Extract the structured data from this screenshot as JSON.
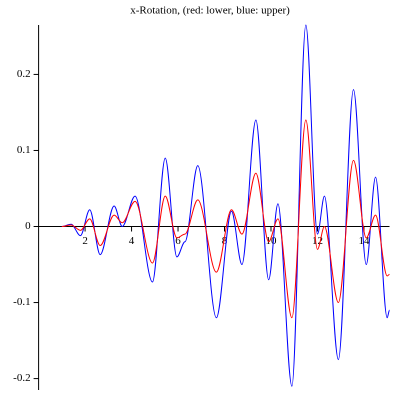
{
  "chart_data": {
    "type": "line",
    "title": "x-Rotation, (red: lower, blue: upper)",
    "x": [
      1,
      1.4,
      1.8,
      2.2,
      2.65,
      3.25,
      3.6,
      4.15,
      4.9,
      5.45,
      5.95,
      6.3,
      6.85,
      7.65,
      8.3,
      8.75,
      9.35,
      9.9,
      10.3,
      10.9,
      11.5,
      12.0,
      12.3,
      12.9,
      13.55,
      14.1,
      14.5,
      15.0,
      15.1
    ],
    "series": [
      {
        "color": "#0000ff",
        "values": [
          0,
          0.003,
          -0.012,
          0.022,
          -0.037,
          0.027,
          0.0,
          0.04,
          -0.073,
          0.09,
          -0.04,
          -0.02,
          0.08,
          -0.12,
          0.02,
          -0.05,
          0.14,
          -0.07,
          0.03,
          -0.21,
          0.265,
          -0.01,
          0.04,
          -0.175,
          0.18,
          -0.05,
          0.065,
          -0.12,
          -0.11
        ]
      },
      {
        "color": "#ff0000",
        "values": [
          0,
          0.002,
          -0.005,
          0.01,
          -0.025,
          0.015,
          0.005,
          0.033,
          -0.048,
          0.04,
          -0.015,
          -0.01,
          0.035,
          -0.06,
          0.022,
          -0.01,
          0.07,
          -0.02,
          0.01,
          -0.12,
          0.14,
          -0.03,
          0.0,
          -0.1,
          0.087,
          -0.015,
          0.015,
          -0.065,
          -0.063
        ]
      }
    ],
    "xlim": [
      0,
      15.1
    ],
    "ylim": [
      -0.215,
      0.265
    ],
    "xticks": [
      2,
      4,
      6,
      8,
      10,
      12,
      14
    ],
    "yticks": [
      -0.2,
      -0.1,
      0,
      0.1,
      0.2
    ]
  }
}
